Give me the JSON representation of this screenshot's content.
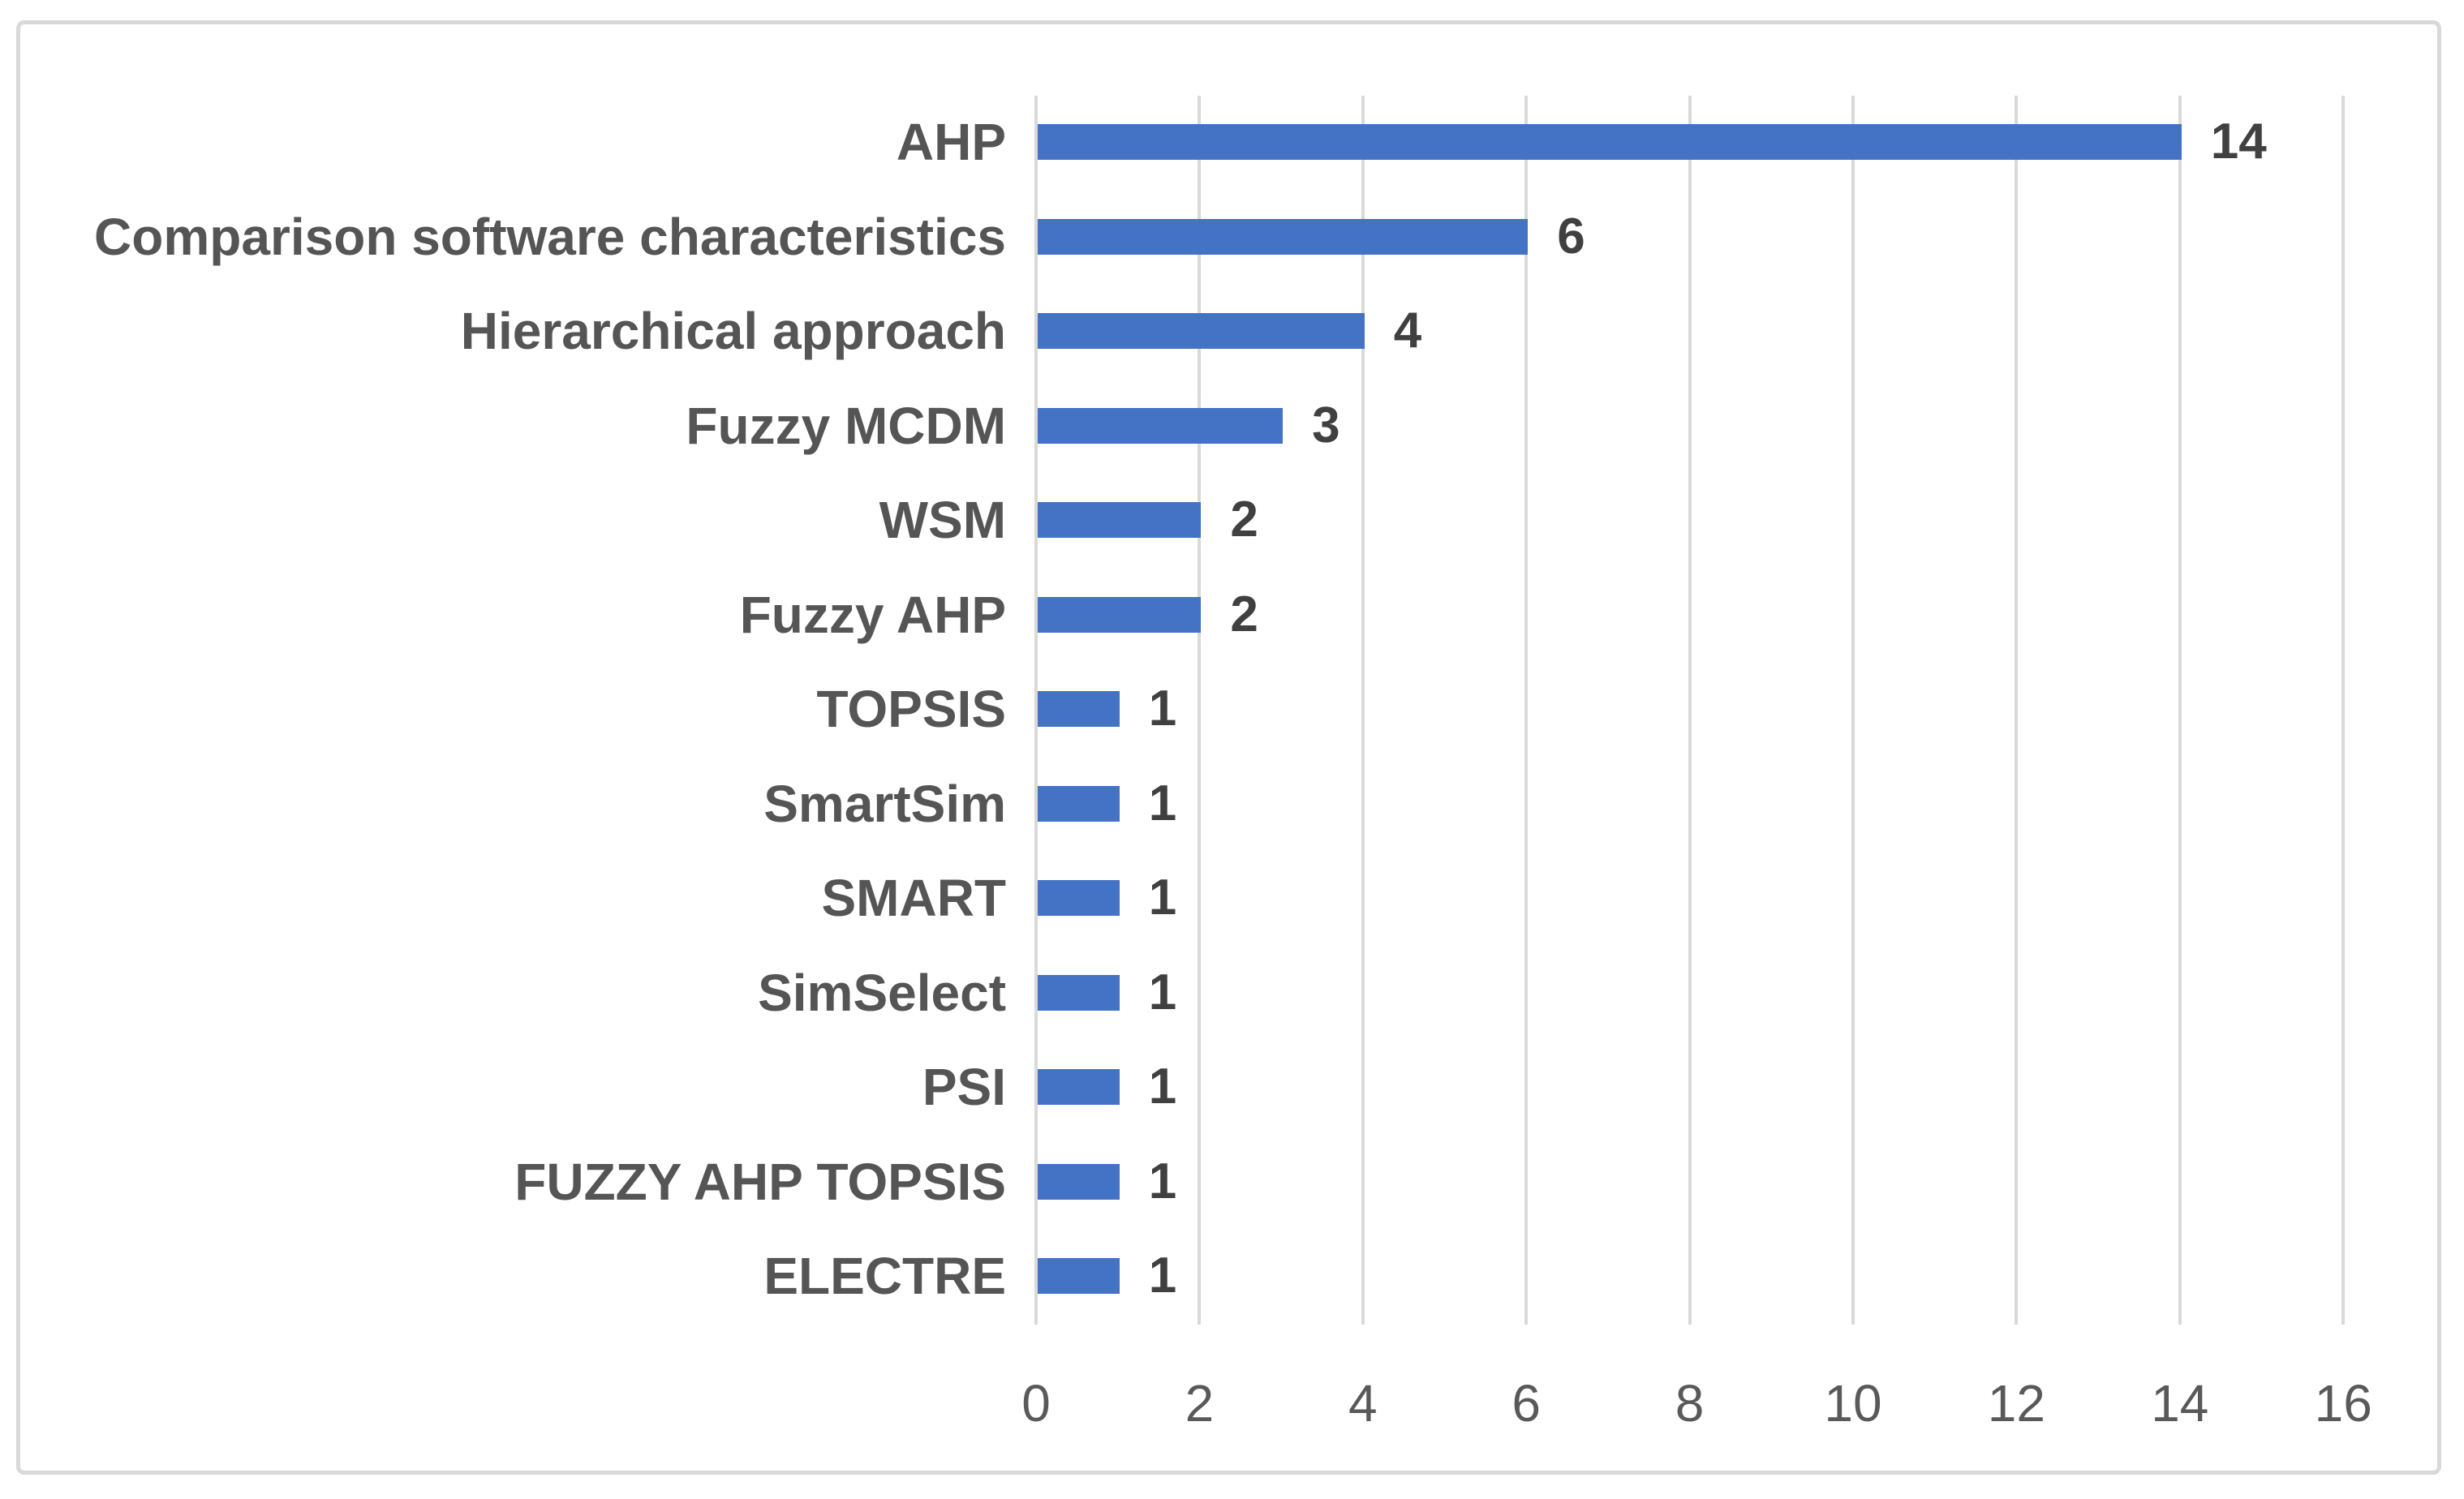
{
  "chart_data": {
    "type": "bar",
    "orientation": "horizontal",
    "title": "",
    "xlabel": "",
    "ylabel": "",
    "categories": [
      "AHP",
      "Comparison software characteristics",
      "Hierarchical approach",
      "Fuzzy MCDM",
      "WSM",
      "Fuzzy AHP",
      "TOPSIS",
      "SmartSim",
      "SMART",
      "SimSelect",
      "PSI",
      "FUZZY AHP TOPSIS",
      "ELECTRE"
    ],
    "values": [
      14,
      6,
      4,
      3,
      2,
      2,
      1,
      1,
      1,
      1,
      1,
      1,
      1
    ],
    "data_labels": [
      "14",
      "6",
      "4",
      "3",
      "2",
      "2",
      "1",
      "1",
      "1",
      "1",
      "1",
      "1",
      "1"
    ],
    "x_ticks": [
      0,
      2,
      4,
      6,
      8,
      10,
      12,
      14,
      16
    ],
    "x_tick_labels": [
      "0",
      "2",
      "4",
      "6",
      "8",
      "10",
      "12",
      "14",
      "16"
    ],
    "xlim": [
      0,
      16
    ],
    "grid": "vertical-only",
    "legend": "none",
    "colors": {
      "bar": "#4472C4",
      "gridline": "#D9D9D9",
      "frame_border": "#D9D9D9",
      "category_label": "#555555",
      "data_label": "#404040",
      "tick_label": "#595959",
      "background": "#FFFFFF"
    }
  }
}
